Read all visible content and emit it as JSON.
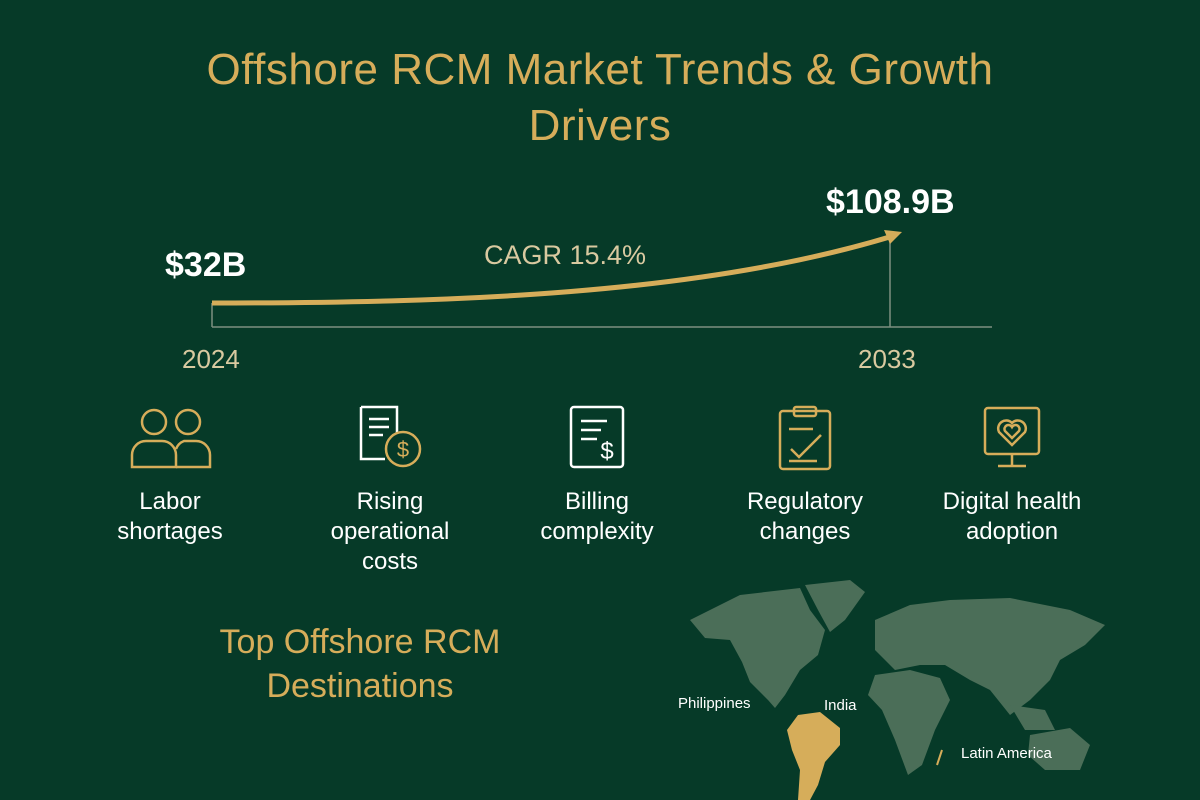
{
  "title": {
    "line1": "Offshore RCM Market Trends & Growth",
    "line2": "Drivers"
  },
  "growth": {
    "start_value": "$32B",
    "end_value": "$108.9B",
    "cagr": "CAGR 15.4%",
    "start_year": "2024",
    "end_year": "2033"
  },
  "drivers": [
    {
      "icon": "people-icon",
      "line1": "Labor",
      "line2": "shortages",
      "line3": ""
    },
    {
      "icon": "document-dollar-icon",
      "line1": "Rising",
      "line2": "operational",
      "line3": "costs"
    },
    {
      "icon": "invoice-icon",
      "line1": "Billing",
      "line2": "complexity",
      "line3": ""
    },
    {
      "icon": "clipboard-check-icon",
      "line1": "Regulatory",
      "line2": "changes",
      "line3": ""
    },
    {
      "icon": "monitor-heart-icon",
      "line1": "Digital health",
      "line2": "adoption",
      "line3": ""
    }
  ],
  "destinations": {
    "title_line1": "Top Offshore RCM",
    "title_line2": "Destinations",
    "labels": [
      "Philippines",
      "India",
      "Latin America"
    ]
  },
  "colors": {
    "background": "#063a28",
    "gold": "#d6ad5a",
    "map_land": "#4b6e58",
    "text": "#ffffff"
  }
}
